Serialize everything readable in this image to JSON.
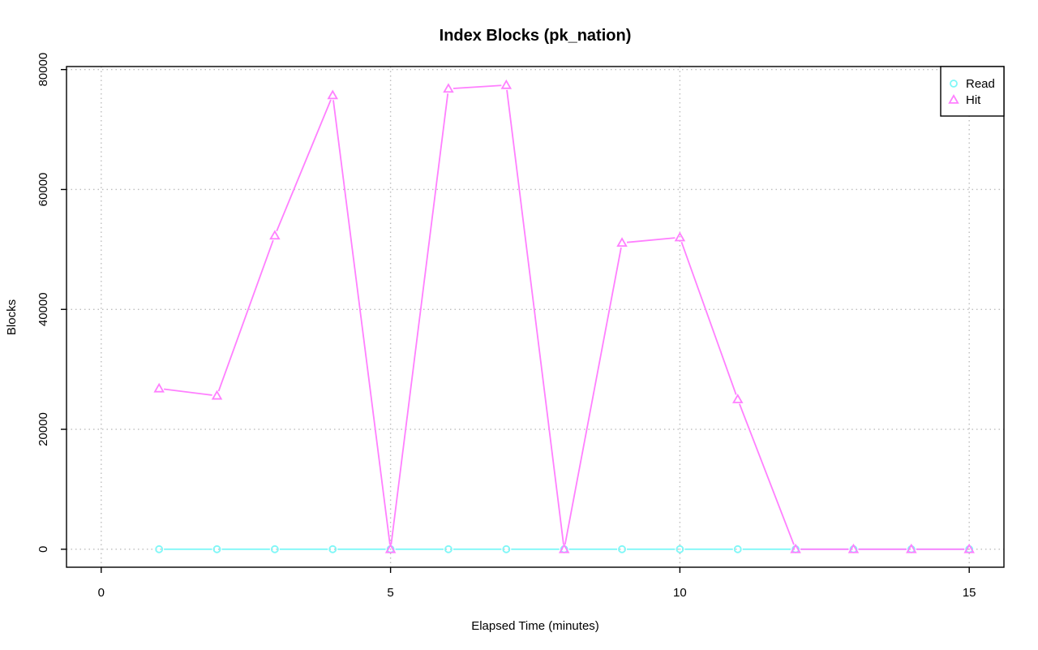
{
  "chart_data": {
    "type": "line",
    "title": "Index Blocks (pk_nation)",
    "xlabel": "Elapsed Time (minutes)",
    "ylabel": "Blocks",
    "xlim": [
      -0.6,
      15.6
    ],
    "ylim": [
      -3000,
      80500
    ],
    "x_ticks": [
      0,
      5,
      10,
      15
    ],
    "x_tick_labels": [
      "0",
      "5",
      "10",
      "15"
    ],
    "y_ticks": [
      0,
      20000,
      40000,
      60000,
      80000
    ],
    "y_tick_labels": [
      "0",
      "20000",
      "40000",
      "60000",
      "80000"
    ],
    "grid": true,
    "legend_position": "top-right",
    "x": [
      1,
      2,
      3,
      4,
      5,
      6,
      7,
      8,
      9,
      10,
      11,
      12,
      13,
      14,
      15
    ],
    "series": [
      {
        "name": "Read",
        "marker": "circle",
        "color": "#7ff7f7",
        "values": [
          0,
          0,
          0,
          0,
          0,
          0,
          0,
          0,
          0,
          0,
          0,
          0,
          0,
          0,
          0
        ]
      },
      {
        "name": "Hit",
        "marker": "triangle",
        "color": "#ff7fff",
        "values": [
          26800,
          25600,
          52300,
          75700,
          0,
          76800,
          77400,
          0,
          51100,
          52000,
          25000,
          0,
          0,
          0,
          0
        ]
      }
    ]
  }
}
